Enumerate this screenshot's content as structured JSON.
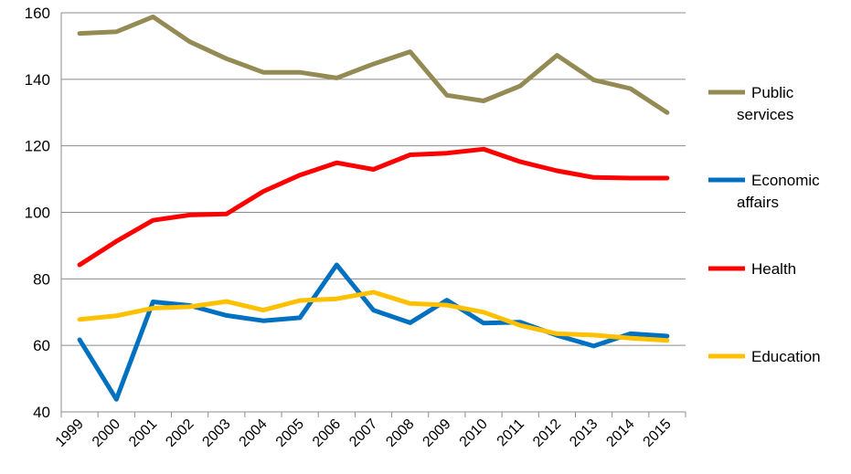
{
  "chart_data": {
    "type": "line",
    "title": "",
    "xlabel": "",
    "ylabel": "",
    "categories": [
      "1999",
      "2000",
      "2001",
      "2002",
      "2003",
      "2004",
      "2005",
      "2006",
      "2007",
      "2008",
      "2009",
      "2010",
      "2011",
      "2012",
      "2013",
      "2014",
      "2015"
    ],
    "ylim": [
      40,
      160
    ],
    "yticks": [
      40,
      60,
      80,
      100,
      120,
      140,
      160
    ],
    "grid": true,
    "legend_position": "right",
    "series": [
      {
        "name_lines": [
          "Public",
          "services"
        ],
        "color": "#948a54",
        "values": [
          153.8,
          154.3,
          158.8,
          151.3,
          146.2,
          142.1,
          142.1,
          140.4,
          144.6,
          148.3,
          135.2,
          133.5,
          138.0,
          147.2,
          139.8,
          137.2,
          130.0
        ]
      },
      {
        "name_lines": [
          "Economic",
          "affairs"
        ],
        "color": "#0070c0",
        "values": [
          61.7,
          43.8,
          73.1,
          72.0,
          69.0,
          67.4,
          68.3,
          84.2,
          70.6,
          66.8,
          73.6,
          66.7,
          67.0,
          63.0,
          59.8,
          63.5,
          62.8
        ]
      },
      {
        "name_lines": [
          "Health"
        ],
        "color": "#ff0000",
        "values": [
          84.2,
          91.3,
          97.6,
          99.2,
          99.5,
          106.3,
          111.2,
          114.9,
          112.9,
          117.3,
          117.8,
          119.0,
          115.2,
          112.5,
          110.5,
          110.3,
          110.3
        ]
      },
      {
        "name_lines": [
          "Education"
        ],
        "color": "#ffc000",
        "values": [
          67.8,
          68.9,
          71.2,
          71.6,
          73.2,
          70.6,
          73.5,
          74.0,
          76.0,
          72.6,
          72.1,
          70.0,
          66.0,
          63.5,
          63.1,
          62.2,
          61.5
        ]
      }
    ]
  }
}
